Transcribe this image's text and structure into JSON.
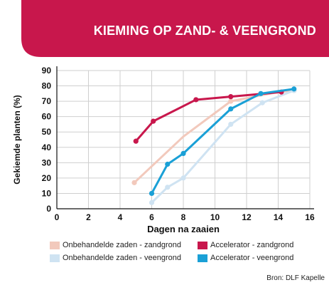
{
  "header": {
    "title": "KIEMING OP ZAND- & VEENGROND",
    "color": "#c8174c"
  },
  "source": "Bron: DLF Kapelle",
  "chart_data": {
    "type": "line",
    "title": "",
    "xlabel": "Dagen na zaaien",
    "ylabel": "Gekiemde planten (%)",
    "xlim": [
      0,
      16
    ],
    "ylim": [
      0,
      90
    ],
    "xticks": [
      0,
      2,
      4,
      6,
      8,
      10,
      12,
      14,
      16
    ],
    "yticks": [
      0,
      10,
      20,
      30,
      40,
      50,
      60,
      70,
      80,
      90
    ],
    "grid": true,
    "legend_position": "bottom",
    "series": [
      {
        "name": "Onbehandelde zaden - zandgrond",
        "color": "#f2c9bc",
        "markers": [
          true,
          false,
          true,
          false,
          true
        ],
        "x": [
          4.9,
          8.0,
          11.0,
          14.0,
          15.0
        ],
        "y": [
          17,
          47,
          70,
          76,
          77
        ]
      },
      {
        "name": "Onbehandelde zaden - veengrond",
        "color": "#cfe3f2",
        "markers": [
          true,
          true,
          true,
          true,
          true,
          true
        ],
        "x": [
          6.0,
          7.0,
          8.0,
          11.0,
          13.0,
          15.0
        ],
        "y": [
          4,
          14,
          20,
          55,
          69,
          77
        ]
      },
      {
        "name": "Accelerator - zandgrond",
        "color": "#c8174c",
        "markers": [
          true,
          true,
          true,
          true,
          true
        ],
        "x": [
          5.0,
          6.1,
          8.8,
          11.0,
          14.2
        ],
        "y": [
          44,
          57,
          71,
          73,
          76
        ]
      },
      {
        "name": "Accelerator - veengrond",
        "color": "#1aa0d6",
        "markers": [
          true,
          true,
          true,
          true,
          true,
          true
        ],
        "x": [
          6.0,
          7.0,
          8.0,
          11.0,
          12.9,
          15.0
        ],
        "y": [
          10,
          29,
          36,
          65,
          75,
          78
        ]
      }
    ]
  },
  "legend": {
    "items": [
      {
        "label": "Onbehandelde zaden - zandgrond",
        "color": "#f2c9bc"
      },
      {
        "label": "Accelerator - zandgrond",
        "color": "#c8174c"
      },
      {
        "label": "Onbehandelde zaden - veengrond",
        "color": "#cfe3f2"
      },
      {
        "label": "Accelerator - veengrond",
        "color": "#1aa0d6"
      }
    ]
  }
}
